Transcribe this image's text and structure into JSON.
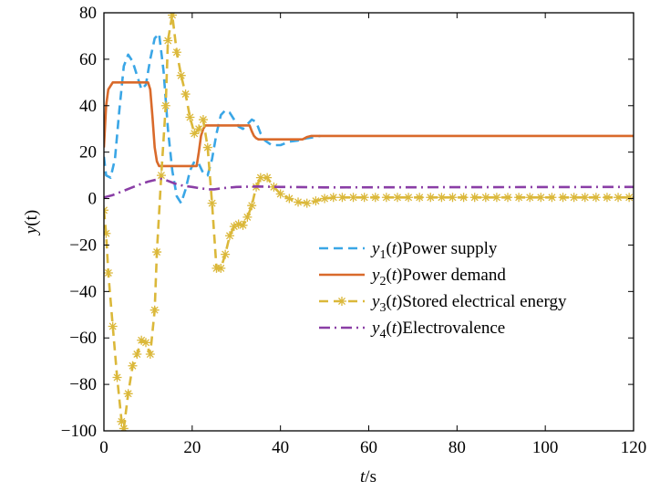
{
  "chart_data": {
    "type": "line",
    "title": "",
    "xlabel": {
      "italic": "t",
      "rest": "/s"
    },
    "ylabel": {
      "italic": "y",
      "rest": "(t)"
    },
    "xlim": [
      0,
      120
    ],
    "ylim": [
      -100,
      80
    ],
    "xticks": [
      0,
      20,
      40,
      60,
      80,
      100,
      120
    ],
    "yticks": [
      -100,
      -80,
      -60,
      -40,
      -20,
      0,
      20,
      40,
      60,
      80
    ],
    "grid": false,
    "legend_position": "right-center",
    "series": [
      {
        "name": "Power supply",
        "legend_var": "y",
        "legend_sub": "1",
        "legend_arg": "t",
        "color": "#3aa6e6",
        "style": "dashed",
        "points": [
          [
            0,
            18
          ],
          [
            0.5,
            10
          ],
          [
            1.5,
            9
          ],
          [
            2.5,
            17
          ],
          [
            3.5,
            38
          ],
          [
            4.5,
            57
          ],
          [
            5.5,
            62
          ],
          [
            6.5,
            59
          ],
          [
            7.5,
            53
          ],
          [
            8.5,
            47
          ],
          [
            9.5,
            49
          ],
          [
            10.5,
            60
          ],
          [
            11.5,
            69
          ],
          [
            12.5,
            71
          ],
          [
            13.5,
            55
          ],
          [
            14.5,
            30
          ],
          [
            15.5,
            12
          ],
          [
            16.5,
            1
          ],
          [
            17.5,
            -2
          ],
          [
            18.5,
            4
          ],
          [
            19.5,
            12
          ],
          [
            20.5,
            16
          ],
          [
            21.5,
            15
          ],
          [
            22.5,
            11
          ],
          [
            23.5,
            10
          ],
          [
            24.5,
            17
          ],
          [
            25.5,
            28
          ],
          [
            26.5,
            36
          ],
          [
            27.5,
            38
          ],
          [
            28.5,
            37
          ],
          [
            29.5,
            34
          ],
          [
            30.5,
            31
          ],
          [
            31.5,
            30
          ],
          [
            32.5,
            32
          ],
          [
            33.5,
            34
          ],
          [
            34.5,
            33
          ],
          [
            35.5,
            28
          ],
          [
            36.5,
            25
          ],
          [
            38,
            23
          ],
          [
            40,
            23
          ],
          [
            42,
            24.5
          ],
          [
            44,
            25
          ],
          [
            46,
            26
          ],
          [
            48,
            26.5
          ],
          [
            49,
            27
          ]
        ]
      },
      {
        "name": "Power demand",
        "legend_var": "y",
        "legend_sub": "2",
        "legend_arg": "t",
        "color": "#d96a2b",
        "style": "solid",
        "points": [
          [
            0,
            22
          ],
          [
            0.5,
            40
          ],
          [
            1,
            47
          ],
          [
            2,
            50
          ],
          [
            10,
            50
          ],
          [
            10.5,
            47
          ],
          [
            11,
            35
          ],
          [
            11.5,
            22
          ],
          [
            12,
            16
          ],
          [
            12.5,
            14
          ],
          [
            21,
            14
          ],
          [
            21.5,
            20
          ],
          [
            22,
            27
          ],
          [
            22.5,
            30
          ],
          [
            23,
            31.5
          ],
          [
            33,
            31.5
          ],
          [
            33.5,
            29
          ],
          [
            34,
            27
          ],
          [
            34.5,
            26
          ],
          [
            35,
            25.5
          ],
          [
            45,
            25.5
          ],
          [
            46,
            26.5
          ],
          [
            47,
            27
          ],
          [
            120,
            27
          ]
        ]
      },
      {
        "name": "Stored electrical energy",
        "legend_var": "y",
        "legend_sub": "3",
        "legend_arg": "t",
        "color": "#dbb83a",
        "style": "dashed-star",
        "points": [
          [
            0,
            -5
          ],
          [
            0.5,
            -15
          ],
          [
            1,
            -32
          ],
          [
            2,
            -55
          ],
          [
            3,
            -77
          ],
          [
            4,
            -96
          ],
          [
            4.5,
            -99
          ],
          [
            5.5,
            -84
          ],
          [
            6.5,
            -72
          ],
          [
            7.5,
            -67
          ],
          [
            8.5,
            -61
          ],
          [
            9.5,
            -62
          ],
          [
            10.5,
            -67
          ],
          [
            11.5,
            -48
          ],
          [
            12,
            -23
          ],
          [
            13,
            10
          ],
          [
            14,
            40
          ],
          [
            14.5,
            68
          ],
          [
            15.5,
            79
          ],
          [
            16.5,
            63
          ],
          [
            17.5,
            53
          ],
          [
            18.5,
            45
          ],
          [
            19.5,
            35
          ],
          [
            20.5,
            28
          ],
          [
            21.5,
            30
          ],
          [
            22.5,
            34
          ],
          [
            23.5,
            22
          ],
          [
            24.5,
            -2
          ],
          [
            25.5,
            -30
          ],
          [
            26.5,
            -30
          ],
          [
            27.5,
            -24
          ],
          [
            28.5,
            -16
          ],
          [
            29.5,
            -12
          ],
          [
            30.5,
            -11
          ],
          [
            31.5,
            -11.5
          ],
          [
            32.5,
            -8
          ],
          [
            33.5,
            -3
          ],
          [
            34.5,
            5
          ],
          [
            35.5,
            9
          ],
          [
            37,
            9
          ],
          [
            38.5,
            5
          ],
          [
            40,
            2
          ],
          [
            42,
            0
          ],
          [
            44,
            -1.5
          ],
          [
            46,
            -2
          ],
          [
            48,
            -1
          ],
          [
            50,
            0
          ],
          [
            52,
            0.5
          ],
          [
            120,
            0.5
          ]
        ]
      },
      {
        "name": "Electrovalence",
        "legend_var": "y",
        "legend_sub": "4",
        "legend_arg": "t",
        "color": "#8a3ea6",
        "style": "dash-dot",
        "points": [
          [
            0,
            0.5
          ],
          [
            2,
            1.5
          ],
          [
            4,
            3
          ],
          [
            6,
            4.5
          ],
          [
            8,
            6
          ],
          [
            10,
            7.3
          ],
          [
            12,
            8.2
          ],
          [
            13,
            8.5
          ],
          [
            14,
            8
          ],
          [
            16,
            6.5
          ],
          [
            18,
            5.5
          ],
          [
            20,
            5
          ],
          [
            22,
            4.4
          ],
          [
            24,
            4
          ],
          [
            25,
            4
          ],
          [
            27,
            4.5
          ],
          [
            30,
            5
          ],
          [
            35,
            5.2
          ],
          [
            40,
            5
          ],
          [
            50,
            4.8
          ],
          [
            120,
            5
          ]
        ]
      }
    ]
  }
}
